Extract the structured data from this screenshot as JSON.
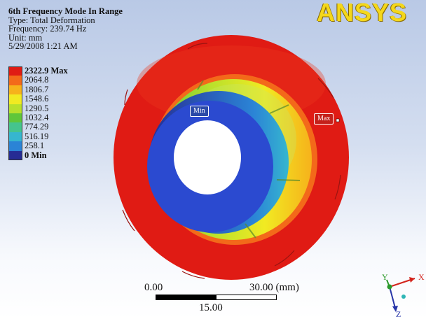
{
  "header": {
    "title": "6th Frequency Mode In Range",
    "type": "Type: Total Deformation",
    "frequency": "Frequency: 239.74 Hz",
    "unit": "Unit: mm",
    "date": "5/29/2008 1:21 AM"
  },
  "legend": [
    {
      "label": "2322.9 Max",
      "color": "#e01b14"
    },
    {
      "label": "2064.8",
      "color": "#f3691a"
    },
    {
      "label": "1806.7",
      "color": "#f6b21b"
    },
    {
      "label": "1548.6",
      "color": "#f1ea22"
    },
    {
      "label": "1290.5",
      "color": "#b8e02c"
    },
    {
      "label": "1032.4",
      "color": "#5fc63a"
    },
    {
      "label": "774.29",
      "color": "#45c48d"
    },
    {
      "label": "516.19",
      "color": "#36b6cf"
    },
    {
      "label": "258.1",
      "color": "#2b84d6"
    },
    {
      "label": "0 Min",
      "color": "#262c94"
    }
  ],
  "logo": "ANSYS",
  "probes": {
    "min": "Min",
    "max": "Max"
  },
  "scale_bar": {
    "left": "0.00",
    "right": "30.00 (mm)",
    "mid": "15.00"
  },
  "triad": {
    "x": "X",
    "y": "Y",
    "z": "Z"
  }
}
